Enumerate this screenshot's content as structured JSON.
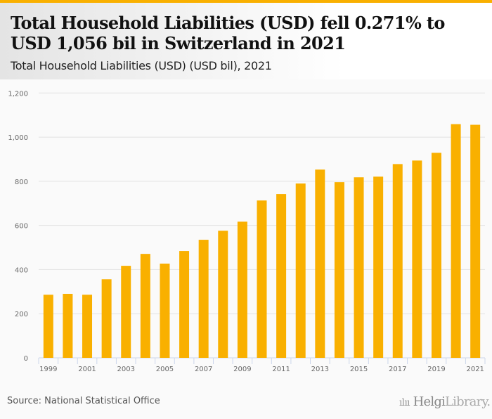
{
  "header": {
    "title": "Total Household Liabilities (USD) fell 0.271% to USD 1,056 bil in Switzerland in 2021",
    "subtitle": "Total Household Liabilities (USD) (USD bil), 2021"
  },
  "footer": {
    "source": "Source: National Statistical Office",
    "logo_text": "HelgiLibrary."
  },
  "colors": {
    "bar": "#f9b000",
    "accent": "#f9b000"
  },
  "chart_data": {
    "type": "bar",
    "title": "Total Household Liabilities (USD) (USD bil), 2021",
    "xlabel": "",
    "ylabel": "",
    "ylim": [
      0,
      1200
    ],
    "yticks": [
      "0",
      "200",
      "400",
      "600",
      "800",
      "1,000",
      "1,200"
    ],
    "ytick_values": [
      0,
      200,
      400,
      600,
      800,
      1000,
      1200
    ],
    "categories": [
      "1999",
      "2000",
      "2001",
      "2002",
      "2003",
      "2004",
      "2005",
      "2006",
      "2007",
      "2008",
      "2009",
      "2010",
      "2011",
      "2012",
      "2013",
      "2014",
      "2015",
      "2016",
      "2017",
      "2018",
      "2019",
      "2020",
      "2021"
    ],
    "xtick_labels": [
      "1999",
      "2001",
      "2003",
      "2005",
      "2007",
      "2009",
      "2011",
      "2013",
      "2015",
      "2017",
      "2019",
      "2021"
    ],
    "values": [
      286,
      290,
      286,
      356,
      417,
      471,
      427,
      484,
      535,
      576,
      617,
      713,
      742,
      790,
      853,
      796,
      818,
      821,
      878,
      894,
      929,
      1059,
      1056
    ],
    "grid": true,
    "legend": "none"
  }
}
